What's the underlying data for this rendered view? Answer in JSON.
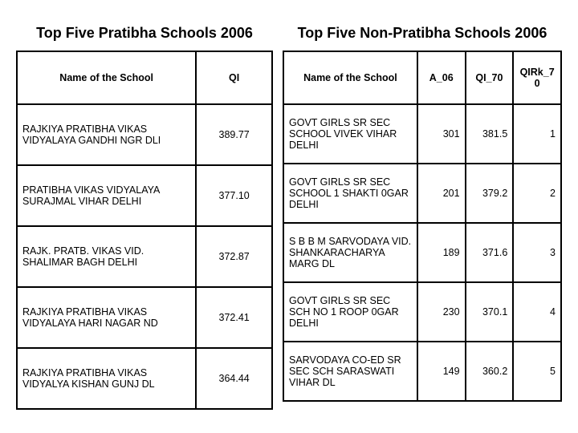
{
  "left": {
    "title": "Top Five Pratibha Schools 2006",
    "headers": [
      "Name of the School",
      "QI"
    ],
    "rows": [
      {
        "name": "RAJKIYA PRATIBHA VIKAS VIDYALAYA  GANDHI NGR DLI",
        "qi": "389.77"
      },
      {
        "name": "PRATIBHA VIKAS VIDYALAYA SURAJMAL VIHAR DELHI",
        "qi": "377.10"
      },
      {
        "name": "RAJK. PRATB. VIKAS VID. SHALIMAR BAGH  DELHI",
        "qi": "372.87"
      },
      {
        "name": "RAJKIYA PRATIBHA VIKAS VIDYALAYA HARI NAGAR ND",
        "qi": "372.41"
      },
      {
        "name": "RAJKIYA PRATIBHA VIKAS VIDYALYA KISHAN GUNJ DL",
        "qi": "364.44"
      }
    ]
  },
  "right": {
    "title": "Top Five Non-Pratibha Schools 2006",
    "headers": [
      "Name of the School",
      "A_06",
      "QI_70",
      "QIRk_70"
    ],
    "rows": [
      {
        "name": "GOVT GIRLS SR SEC SCHOOL VIVEK VIHAR DELHI",
        "a06": "301",
        "qi70": "381.5",
        "rk": "1"
      },
      {
        "name": "GOVT GIRLS SR SEC SCHOOL 1 SHAKTI 0GAR DELHI",
        "a06": "201",
        "qi70": "379.2",
        "rk": "2"
      },
      {
        "name": "S B B M SARVODAYA VID. SHANKARACHARYA MARG DL",
        "a06": "189",
        "qi70": "371.6",
        "rk": "3"
      },
      {
        "name": "GOVT GIRLS SR SEC SCH NO 1 ROOP 0GAR DELHI",
        "a06": "230",
        "qi70": "370.1",
        "rk": "4"
      },
      {
        "name": "SARVODAYA CO-ED SR SEC SCH SARASWATI VIHAR DL",
        "a06": "149",
        "qi70": "360.2",
        "rk": "5"
      }
    ]
  }
}
